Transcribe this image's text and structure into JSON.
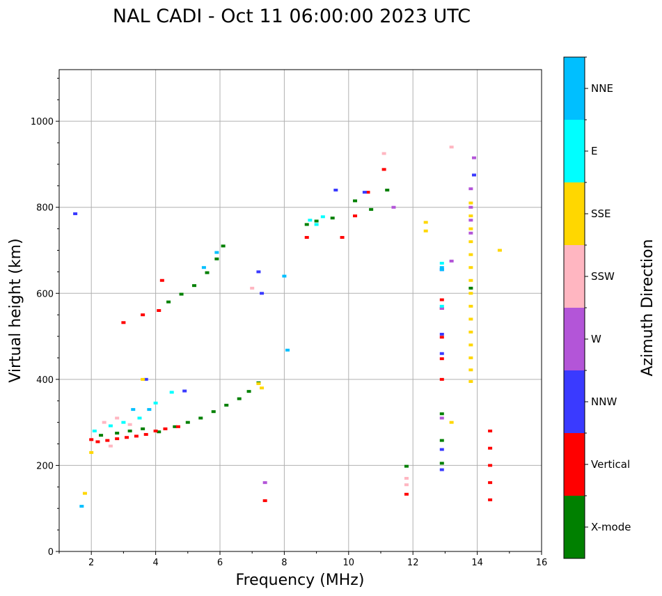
{
  "chart_data": {
    "type": "scatter",
    "title": "NAL CADI - Oct 11 06:00:00 2023 UTC",
    "xlabel": "Frequency (MHz)",
    "ylabel": "Virtual height (km)",
    "xlim": [
      1,
      16
    ],
    "ylim": [
      0,
      1120
    ],
    "x_ticks": [
      {
        "value": 2,
        "label": "2"
      },
      {
        "value": 4,
        "label": "4"
      },
      {
        "value": 6,
        "label": "6"
      },
      {
        "value": 8,
        "label": "8"
      },
      {
        "value": 10,
        "label": "10"
      },
      {
        "value": 12,
        "label": "12"
      },
      {
        "value": 14,
        "label": "14"
      },
      {
        "value": 16,
        "label": "16"
      }
    ],
    "y_ticks": [
      {
        "value": 0,
        "label": "0"
      },
      {
        "value": 200,
        "label": "200"
      },
      {
        "value": 400,
        "label": "400"
      },
      {
        "value": 600,
        "label": "600"
      },
      {
        "value": 800,
        "label": "800"
      },
      {
        "value": 1000,
        "label": "1000"
      }
    ],
    "grid": true,
    "colorbar": {
      "title": "Azimuth Direction",
      "categories": [
        {
          "name": "X-mode",
          "color": "#008000"
        },
        {
          "name": "Vertical",
          "color": "#ff0000"
        },
        {
          "name": "NNW",
          "color": "#3a3aff"
        },
        {
          "name": "W",
          "color": "#b355d8"
        },
        {
          "name": "SSW",
          "color": "#ffb6c1"
        },
        {
          "name": "SSE",
          "color": "#ffd700"
        },
        {
          "name": "E",
          "color": "#00ffff"
        },
        {
          "name": "NNE",
          "color": "#00bfff"
        }
      ]
    },
    "series": [
      {
        "name": "X-mode",
        "points": [
          [
            2.3,
            270
          ],
          [
            2.8,
            275
          ],
          [
            3.2,
            280
          ],
          [
            3.6,
            285
          ],
          [
            4.1,
            278
          ],
          [
            4.6,
            290
          ],
          [
            5.0,
            300
          ],
          [
            5.4,
            310
          ],
          [
            5.8,
            325
          ],
          [
            6.2,
            340
          ],
          [
            6.6,
            355
          ],
          [
            6.9,
            372
          ],
          [
            7.2,
            392
          ],
          [
            4.4,
            580
          ],
          [
            4.8,
            598
          ],
          [
            5.2,
            618
          ],
          [
            5.6,
            648
          ],
          [
            5.9,
            680
          ],
          [
            6.1,
            710
          ],
          [
            8.7,
            760
          ],
          [
            9.0,
            768
          ],
          [
            9.5,
            775
          ],
          [
            10.2,
            815
          ],
          [
            10.7,
            795
          ],
          [
            11.2,
            840
          ],
          [
            12.9,
            320
          ],
          [
            12.9,
            258
          ],
          [
            12.9,
            205
          ],
          [
            13.8,
            612
          ],
          [
            11.8,
            198
          ]
        ]
      },
      {
        "name": "Vertical",
        "points": [
          [
            2.0,
            260
          ],
          [
            2.2,
            255
          ],
          [
            2.5,
            258
          ],
          [
            2.8,
            262
          ],
          [
            3.1,
            265
          ],
          [
            3.4,
            268
          ],
          [
            3.7,
            272
          ],
          [
            4.0,
            280
          ],
          [
            4.3,
            285
          ],
          [
            4.7,
            290
          ],
          [
            3.0,
            532
          ],
          [
            3.6,
            550
          ],
          [
            4.1,
            560
          ],
          [
            4.2,
            630
          ],
          [
            8.7,
            730
          ],
          [
            9.8,
            730
          ],
          [
            10.2,
            780
          ],
          [
            10.6,
            835
          ],
          [
            11.1,
            888
          ],
          [
            12.9,
            400
          ],
          [
            12.9,
            448
          ],
          [
            12.9,
            498
          ],
          [
            12.9,
            565
          ],
          [
            12.9,
            585
          ],
          [
            14.4,
            120
          ],
          [
            14.4,
            160
          ],
          [
            14.4,
            200
          ],
          [
            14.4,
            240
          ],
          [
            14.4,
            280
          ],
          [
            7.4,
            118
          ],
          [
            11.8,
            133
          ]
        ]
      },
      {
        "name": "NNW",
        "points": [
          [
            1.5,
            785
          ],
          [
            3.7,
            400
          ],
          [
            4.9,
            373
          ],
          [
            7.2,
            650
          ],
          [
            7.3,
            600
          ],
          [
            9.6,
            840
          ],
          [
            10.5,
            835
          ],
          [
            12.9,
            190
          ],
          [
            12.9,
            237
          ],
          [
            12.9,
            505
          ],
          [
            12.9,
            460
          ],
          [
            12.9,
            655
          ],
          [
            13.9,
            875
          ]
        ]
      },
      {
        "name": "W",
        "points": [
          [
            7.4,
            160
          ],
          [
            12.9,
            310
          ],
          [
            12.9,
            565
          ],
          [
            13.2,
            675
          ],
          [
            13.8,
            843
          ],
          [
            13.8,
            800
          ],
          [
            13.8,
            770
          ],
          [
            13.8,
            740
          ],
          [
            11.4,
            800
          ],
          [
            13.9,
            915
          ]
        ]
      },
      {
        "name": "SSW",
        "points": [
          [
            2.4,
            300
          ],
          [
            2.8,
            310
          ],
          [
            3.2,
            295
          ],
          [
            2.6,
            245
          ],
          [
            7.0,
            612
          ],
          [
            11.8,
            170
          ],
          [
            11.8,
            155
          ],
          [
            13.2,
            940
          ],
          [
            11.1,
            925
          ]
        ]
      },
      {
        "name": "SSE",
        "points": [
          [
            1.8,
            135
          ],
          [
            2.0,
            230
          ],
          [
            3.6,
            400
          ],
          [
            7.2,
            390
          ],
          [
            7.3,
            380
          ],
          [
            12.4,
            765
          ],
          [
            12.4,
            745
          ],
          [
            13.2,
            300
          ],
          [
            13.8,
            395
          ],
          [
            13.8,
            422
          ],
          [
            13.8,
            450
          ],
          [
            13.8,
            480
          ],
          [
            13.8,
            510
          ],
          [
            13.8,
            540
          ],
          [
            13.8,
            570
          ],
          [
            13.8,
            600
          ],
          [
            13.8,
            630
          ],
          [
            13.8,
            660
          ],
          [
            13.8,
            690
          ],
          [
            13.8,
            720
          ],
          [
            13.8,
            750
          ],
          [
            13.8,
            780
          ],
          [
            13.8,
            810
          ],
          [
            14.7,
            700
          ]
        ]
      },
      {
        "name": "E",
        "points": [
          [
            2.1,
            280
          ],
          [
            2.6,
            292
          ],
          [
            3.0,
            300
          ],
          [
            3.5,
            310
          ],
          [
            4.0,
            345
          ],
          [
            4.5,
            370
          ],
          [
            9.2,
            778
          ],
          [
            9.0,
            760
          ],
          [
            8.8,
            770
          ],
          [
            12.9,
            670
          ],
          [
            12.9,
            570
          ]
        ]
      },
      {
        "name": "NNE",
        "points": [
          [
            1.7,
            105
          ],
          [
            3.3,
            330
          ],
          [
            3.8,
            330
          ],
          [
            5.9,
            695
          ],
          [
            5.5,
            660
          ],
          [
            8.0,
            640
          ],
          [
            8.1,
            468
          ],
          [
            12.9,
            660
          ],
          [
            12.9,
            655
          ]
        ]
      }
    ]
  }
}
